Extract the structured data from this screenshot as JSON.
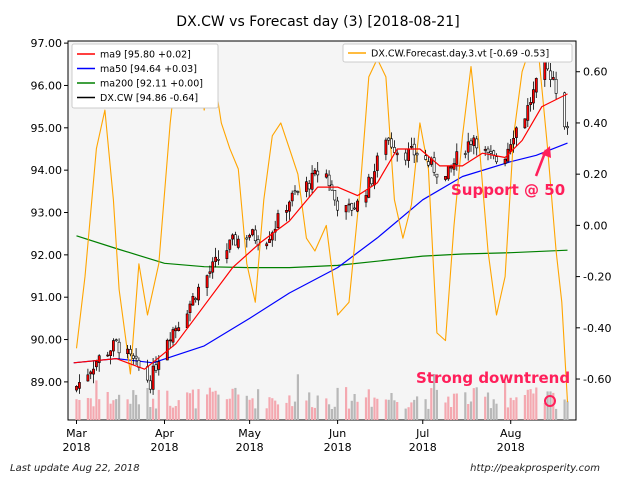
{
  "chart_data": {
    "type": "candlestick",
    "title": "DX.CW vs Forecast day (3)  [2018-08-21]",
    "x_range": [
      "2018-02-26",
      "2018-08-24"
    ],
    "x_ticks": [
      {
        "date": "2018-03-01",
        "label": "Mar",
        "year": "2018"
      },
      {
        "date": "2018-04-01",
        "label": "Apr",
        "year": "2018"
      },
      {
        "date": "2018-05-01",
        "label": "May",
        "year": "2018"
      },
      {
        "date": "2018-06-01",
        "label": "Jun",
        "year": "2018"
      },
      {
        "date": "2018-07-01",
        "label": "Jul",
        "year": "2018"
      },
      {
        "date": "2018-08-01",
        "label": "Aug",
        "year": "2018"
      }
    ],
    "y_left": {
      "range": [
        88.1,
        97.05
      ],
      "ticks": [
        89.0,
        90.0,
        91.0,
        92.0,
        93.0,
        94.0,
        95.0,
        96.0,
        97.0
      ],
      "decimals": 2
    },
    "y_right": {
      "range": [
        -0.76,
        0.72
      ],
      "ticks": [
        -0.6,
        -0.4,
        -0.2,
        0.0,
        0.2,
        0.4,
        0.6
      ],
      "decimals": 2
    },
    "legend_left": [
      {
        "label": "ma9 [95.80 +0.02]",
        "color": "#ff0000"
      },
      {
        "label": "ma50 [94.64 +0.03]",
        "color": "#0000ff"
      },
      {
        "label": "ma200 [92.11 +0.00]",
        "color": "#008000"
      },
      {
        "label": "DX.CW [94.86 -0.64]",
        "color": "#000000"
      }
    ],
    "legend_right": [
      {
        "label": "DX.CW.Forecast.day.3.vt [-0.69 -0.53]",
        "color": "#ffa500"
      }
    ],
    "price_anchors": [
      [
        "2018-03-01",
        88.9
      ],
      [
        "2018-03-08",
        89.5
      ],
      [
        "2018-03-15",
        89.9
      ],
      [
        "2018-03-22",
        89.4
      ],
      [
        "2018-03-27",
        89.0
      ],
      [
        "2018-04-01",
        90.0
      ],
      [
        "2018-04-06",
        90.4
      ],
      [
        "2018-04-13",
        91.2
      ],
      [
        "2018-04-20",
        91.9
      ],
      [
        "2018-04-25",
        92.3
      ],
      [
        "2018-05-01",
        92.5
      ],
      [
        "2018-05-06",
        92.3
      ],
      [
        "2018-05-10",
        92.7
      ],
      [
        "2018-05-15",
        93.3
      ],
      [
        "2018-05-22",
        93.7
      ],
      [
        "2018-05-27",
        94.1
      ],
      [
        "2018-05-31",
        93.3
      ],
      [
        "2018-06-03",
        93.0
      ],
      [
        "2018-06-08",
        93.2
      ],
      [
        "2018-06-13",
        93.8
      ],
      [
        "2018-06-18",
        94.8
      ],
      [
        "2018-06-23",
        94.4
      ],
      [
        "2018-06-29",
        94.4
      ],
      [
        "2018-07-04",
        94.1
      ],
      [
        "2018-07-09",
        93.8
      ],
      [
        "2018-07-14",
        94.4
      ],
      [
        "2018-07-19",
        94.8
      ],
      [
        "2018-07-24",
        94.3
      ],
      [
        "2018-07-29",
        94.2
      ],
      [
        "2018-08-02",
        94.9
      ],
      [
        "2018-08-06",
        95.3
      ],
      [
        "2018-08-10",
        96.0
      ],
      [
        "2018-08-13",
        96.4
      ],
      [
        "2018-08-16",
        96.2
      ],
      [
        "2018-08-21",
        94.86
      ]
    ],
    "ma9_anchors": [
      [
        "2018-02-28",
        89.45
      ],
      [
        "2018-03-15",
        89.55
      ],
      [
        "2018-03-25",
        89.3
      ],
      [
        "2018-04-05",
        89.9
      ],
      [
        "2018-04-15",
        90.8
      ],
      [
        "2018-04-25",
        91.7
      ],
      [
        "2018-05-05",
        92.3
      ],
      [
        "2018-05-15",
        92.8
      ],
      [
        "2018-05-25",
        93.6
      ],
      [
        "2018-06-01",
        93.6
      ],
      [
        "2018-06-08",
        93.4
      ],
      [
        "2018-06-15",
        93.7
      ],
      [
        "2018-06-22",
        94.5
      ],
      [
        "2018-06-30",
        94.5
      ],
      [
        "2018-07-07",
        94.1
      ],
      [
        "2018-07-15",
        94.1
      ],
      [
        "2018-07-22",
        94.4
      ],
      [
        "2018-07-30",
        94.3
      ],
      [
        "2018-08-05",
        94.7
      ],
      [
        "2018-08-12",
        95.5
      ],
      [
        "2018-08-21",
        95.8
      ]
    ],
    "ma50_anchors": [
      [
        "2018-02-28",
        89.45
      ],
      [
        "2018-03-15",
        89.55
      ],
      [
        "2018-03-28",
        89.45
      ],
      [
        "2018-04-15",
        89.85
      ],
      [
        "2018-05-01",
        90.5
      ],
      [
        "2018-05-15",
        91.1
      ],
      [
        "2018-06-01",
        91.7
      ],
      [
        "2018-06-15",
        92.4
      ],
      [
        "2018-07-01",
        93.3
      ],
      [
        "2018-07-15",
        93.85
      ],
      [
        "2018-08-01",
        94.2
      ],
      [
        "2018-08-10",
        94.35
      ],
      [
        "2018-08-21",
        94.64
      ]
    ],
    "ma200_anchors": [
      [
        "2018-03-01",
        92.45
      ],
      [
        "2018-03-15",
        92.15
      ],
      [
        "2018-04-01",
        91.8
      ],
      [
        "2018-04-15",
        91.72
      ],
      [
        "2018-05-01",
        91.7
      ],
      [
        "2018-05-15",
        91.7
      ],
      [
        "2018-06-01",
        91.75
      ],
      [
        "2018-06-15",
        91.85
      ],
      [
        "2018-07-01",
        91.97
      ],
      [
        "2018-07-15",
        92.02
      ],
      [
        "2018-08-01",
        92.05
      ],
      [
        "2018-08-21",
        92.11
      ]
    ],
    "forecast_anchors": [
      [
        "2018-03-01",
        -0.48
      ],
      [
        "2018-03-04",
        -0.2
      ],
      [
        "2018-03-08",
        0.3
      ],
      [
        "2018-03-11",
        0.45
      ],
      [
        "2018-03-14",
        0.1
      ],
      [
        "2018-03-16",
        -0.25
      ],
      [
        "2018-03-20",
        -0.58
      ],
      [
        "2018-03-23",
        -0.15
      ],
      [
        "2018-03-26",
        -0.35
      ],
      [
        "2018-03-30",
        -0.15
      ],
      [
        "2018-04-03",
        0.4
      ],
      [
        "2018-04-06",
        0.7
      ],
      [
        "2018-04-09",
        0.6
      ],
      [
        "2018-04-12",
        0.65
      ],
      [
        "2018-04-15",
        0.45
      ],
      [
        "2018-04-18",
        0.62
      ],
      [
        "2018-04-21",
        0.4
      ],
      [
        "2018-04-24",
        0.3
      ],
      [
        "2018-04-27",
        0.22
      ],
      [
        "2018-04-30",
        -0.15
      ],
      [
        "2018-05-03",
        -0.3
      ],
      [
        "2018-05-06",
        0.1
      ],
      [
        "2018-05-09",
        0.35
      ],
      [
        "2018-05-12",
        0.4
      ],
      [
        "2018-05-15",
        0.3
      ],
      [
        "2018-05-18",
        0.2
      ],
      [
        "2018-05-21",
        -0.05
      ],
      [
        "2018-05-24",
        -0.1
      ],
      [
        "2018-05-28",
        0.0
      ],
      [
        "2018-06-01",
        -0.35
      ],
      [
        "2018-06-05",
        -0.3
      ],
      [
        "2018-06-09",
        0.15
      ],
      [
        "2018-06-12",
        0.58
      ],
      [
        "2018-06-15",
        0.65
      ],
      [
        "2018-06-18",
        0.58
      ],
      [
        "2018-06-21",
        0.1
      ],
      [
        "2018-06-24",
        -0.05
      ],
      [
        "2018-06-27",
        0.08
      ],
      [
        "2018-06-30",
        0.4
      ],
      [
        "2018-07-03",
        0.22
      ],
      [
        "2018-07-06",
        -0.42
      ],
      [
        "2018-07-09",
        -0.45
      ],
      [
        "2018-07-12",
        0.0
      ],
      [
        "2018-07-15",
        0.35
      ],
      [
        "2018-07-18",
        0.62
      ],
      [
        "2018-07-21",
        0.3
      ],
      [
        "2018-07-24",
        -0.1
      ],
      [
        "2018-07-27",
        -0.35
      ],
      [
        "2018-07-30",
        -0.2
      ],
      [
        "2018-08-02",
        0.35
      ],
      [
        "2018-08-05",
        0.6
      ],
      [
        "2018-08-08",
        0.7
      ],
      [
        "2018-08-11",
        0.65
      ],
      [
        "2018-08-14",
        0.3
      ],
      [
        "2018-08-17",
        -0.1
      ],
      [
        "2018-08-19",
        -0.3
      ],
      [
        "2018-08-21",
        -0.69
      ]
    ]
  },
  "annotations": {
    "support": "Support @ 50",
    "downtrend": "Strong downtrend"
  },
  "footer": {
    "left": "Last update Aug 22, 2018",
    "right": "http://peakprosperity.com"
  },
  "colors": {
    "up": "#ff0000",
    "down": "#ffffff",
    "ma9": "#ff0000",
    "ma50": "#0000ff",
    "ma200": "#008000",
    "forecast": "#ffa500",
    "annotation": "#ff1f5a",
    "volume_up": "#f4a8b0",
    "volume_down": "#b8b8b8",
    "plot_bg": "#f5f5f5"
  }
}
